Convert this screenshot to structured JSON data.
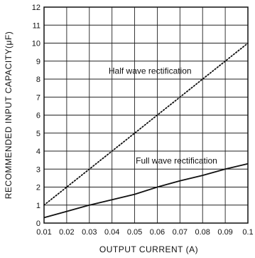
{
  "chart_data": {
    "type": "line",
    "xlabel": "OUTPUT CURRENT (A)",
    "ylabel": "RECOMMENDED INPUT CAPACITY(μF)",
    "xlim": [
      0.01,
      0.1
    ],
    "ylim": [
      0,
      12
    ],
    "x_tick_labels": [
      "0.01",
      "0.02",
      "0.03",
      "0.04",
      "0.05",
      "0.06",
      "0.07",
      "0.08",
      "0.09",
      "0.1"
    ],
    "y_tick_labels": [
      "0",
      "1",
      "2",
      "3",
      "4",
      "5",
      "6",
      "7",
      "8",
      "9",
      "10",
      "11",
      "12"
    ],
    "grid": true,
    "annotations": [
      {
        "text": "Half wave rectification",
        "series": 0
      },
      {
        "text": "Full wave rectification",
        "series": 1
      }
    ],
    "series": [
      {
        "style": "dotted",
        "x": [
          0.01,
          0.02,
          0.03,
          0.04,
          0.05,
          0.06,
          0.07,
          0.08,
          0.09,
          0.1
        ],
        "y": [
          1.0,
          2.0,
          3.0,
          4.0,
          5.0,
          6.0,
          7.0,
          8.0,
          9.0,
          10.0
        ]
      },
      {
        "style": "solid",
        "x": [
          0.01,
          0.02,
          0.03,
          0.04,
          0.05,
          0.06,
          0.07,
          0.08,
          0.09,
          0.1
        ],
        "y": [
          0.3,
          0.65,
          1.0,
          1.3,
          1.6,
          2.0,
          2.35,
          2.65,
          3.0,
          3.3
        ]
      }
    ]
  }
}
